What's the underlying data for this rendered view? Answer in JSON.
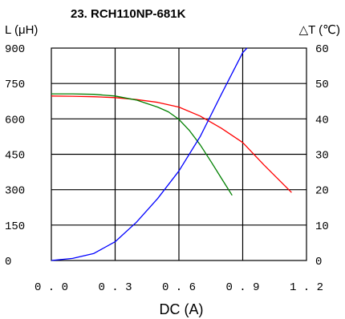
{
  "chart_data": {
    "type": "line",
    "title": "23. RCH110NP-681K",
    "xlabel": "DC (A)",
    "ylabel_left": "L (μH)",
    "ylabel_right": "△T (℃)",
    "xlim": [
      0,
      1.2
    ],
    "ylim_left": [
      0,
      900
    ],
    "ylim_right": [
      0,
      60
    ],
    "grid": true,
    "x_ticks": [
      "0.0",
      "0.3",
      "0.6",
      "0.9",
      "1.2"
    ],
    "y_left_ticks": [
      "900",
      "750",
      "600",
      "450",
      "300",
      "150",
      "0"
    ],
    "y_right_ticks": [
      "60",
      "50",
      "40",
      "30",
      "20",
      "10",
      "0"
    ],
    "series": [
      {
        "axis": "left",
        "color": "#ff0000",
        "x": [
          0,
          0.1,
          0.2,
          0.3,
          0.4,
          0.5,
          0.6,
          0.7,
          0.8,
          0.9,
          1.0,
          1.13
        ],
        "y": [
          697,
          696,
          694,
          690,
          682,
          670,
          650,
          612,
          560,
          500,
          405,
          288
        ]
      },
      {
        "axis": "left",
        "color": "#008000",
        "x": [
          0,
          0.1,
          0.2,
          0.3,
          0.4,
          0.5,
          0.55,
          0.6,
          0.65,
          0.7,
          0.75,
          0.8,
          0.85
        ],
        "y": [
          706,
          706,
          704,
          697,
          680,
          650,
          630,
          598,
          550,
          490,
          420,
          348,
          276
        ]
      },
      {
        "axis": "right",
        "color": "#0000ff",
        "x": [
          0,
          0.1,
          0.2,
          0.3,
          0.4,
          0.5,
          0.6,
          0.7,
          0.8,
          0.9,
          0.92
        ],
        "y": [
          0,
          0.6,
          2.0,
          5.3,
          10.8,
          17.5,
          25.3,
          35.0,
          47.0,
          58.7,
          60
        ]
      }
    ]
  }
}
